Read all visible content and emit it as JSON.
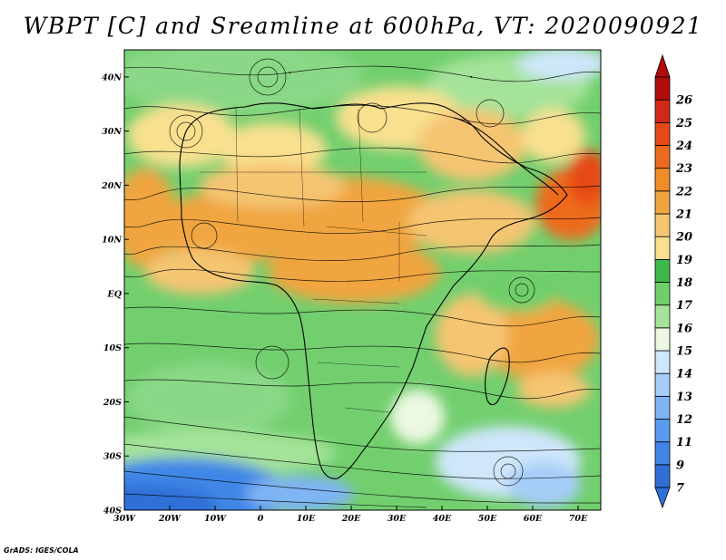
{
  "title": "WBPT [C] and Sreamline at 600hPa, VT: 2020090921",
  "credit": "GrADS: IGES/COLA",
  "map": {
    "lat_labels": [
      "40N",
      "30N",
      "20N",
      "10N",
      "EQ",
      "10S",
      "20S",
      "30S",
      "40S"
    ],
    "lat_values": [
      40,
      30,
      20,
      10,
      0,
      -10,
      -20,
      -30,
      -40
    ],
    "lon_labels": [
      "30W",
      "20W",
      "10W",
      "0",
      "10E",
      "20E",
      "30E",
      "40E",
      "50E",
      "60E",
      "70E"
    ],
    "lon_values": [
      -30,
      -20,
      -10,
      0,
      10,
      20,
      30,
      40,
      50,
      60,
      70
    ],
    "lon_range": [
      -30,
      75
    ],
    "lat_range": [
      -40,
      45
    ]
  },
  "colorbar": {
    "labels": [
      "7",
      "9",
      "11",
      "12",
      "13",
      "14",
      "15",
      "16",
      "17",
      "18",
      "19",
      "20",
      "21",
      "22",
      "23",
      "24",
      "25",
      "26"
    ],
    "colors": [
      "#2f6fd6",
      "#3f86e6",
      "#5a9bf0",
      "#7fb4f5",
      "#a6cdf8",
      "#cfe6fb",
      "#ecf8e2",
      "#a5e39a",
      "#6fcf6a",
      "#3fb94a",
      "#f8e08f",
      "#f5c572",
      "#f0a541",
      "#f08d28",
      "#ed6b1f",
      "#e64818",
      "#d22816",
      "#b10b0b"
    ]
  }
}
